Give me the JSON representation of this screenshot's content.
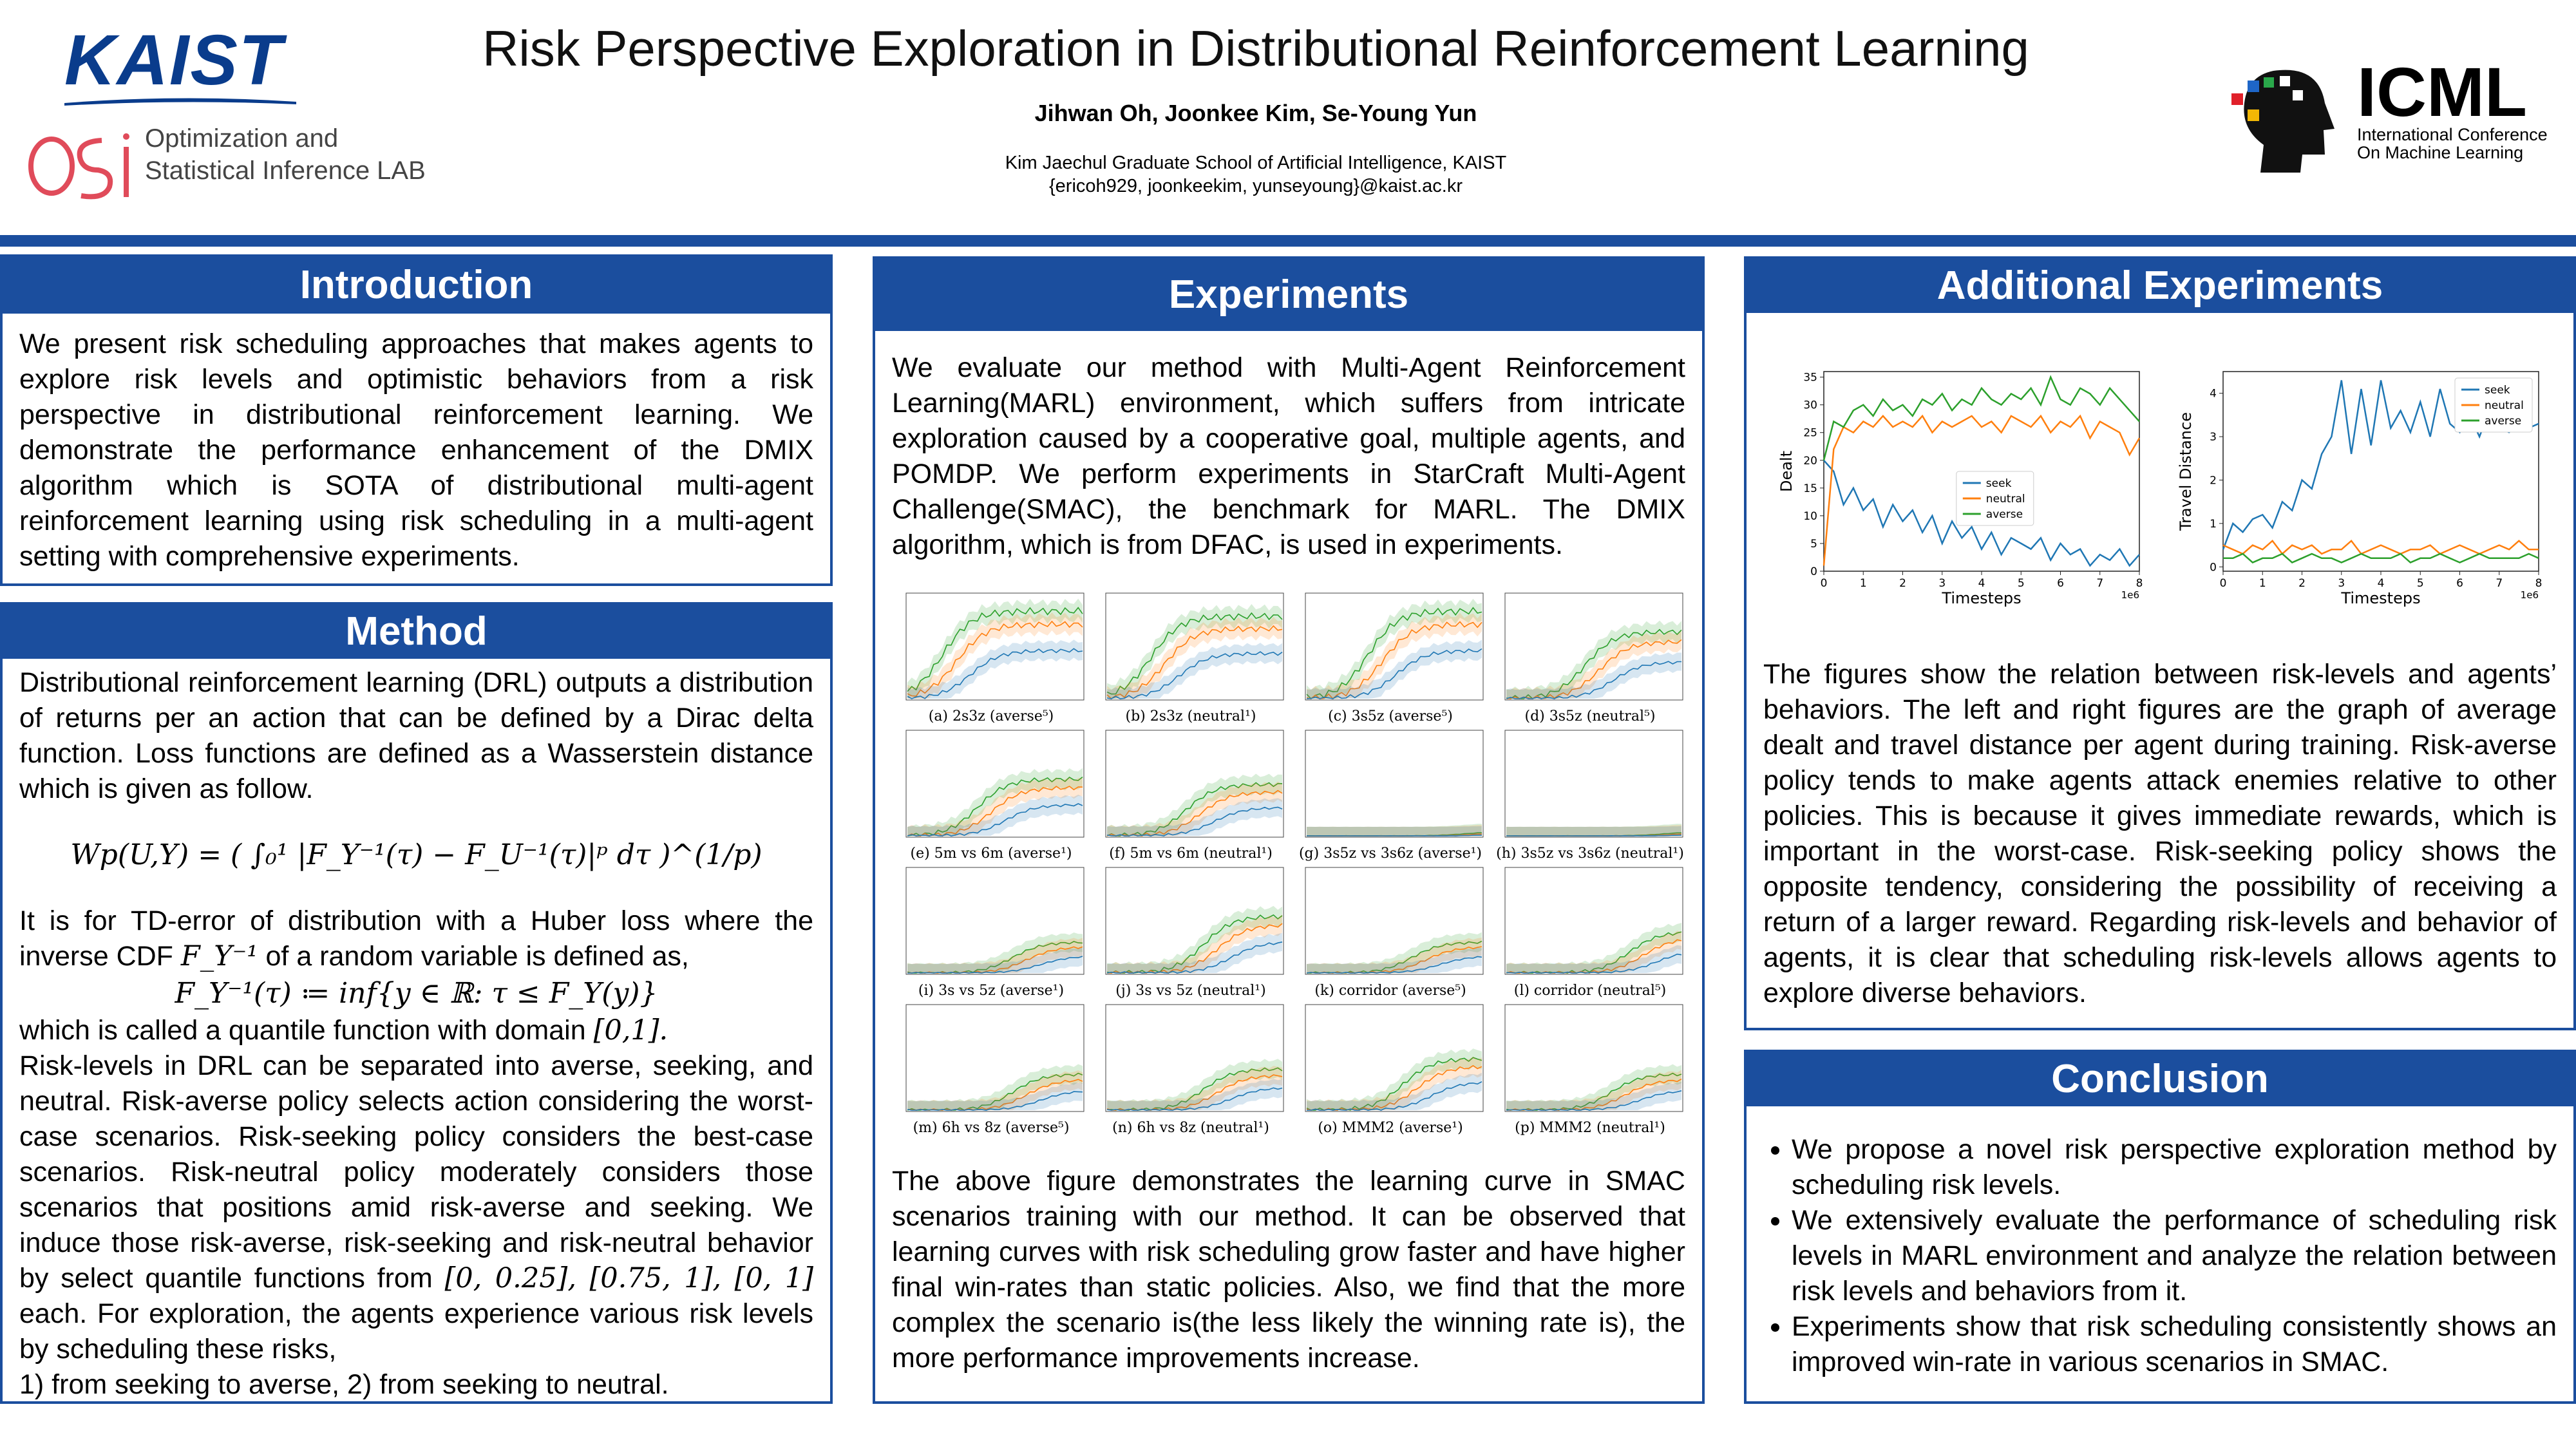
{
  "header": {
    "kaist_logo_text": "KAIST",
    "lab_line1": "Optimization and",
    "lab_line2": "Statistical Inference LAB",
    "title": "Risk Perspective Exploration in Distributional Reinforcement Learning",
    "authors": "Jihwan Oh, Joonkee Kim, Se-Young Yun",
    "affiliation": "Kim Jaechul Graduate School of Artificial Intelligence, KAIST",
    "emails": "{ericoh929, joonkeekim, yunseyoung}@kaist.ac.kr",
    "icml_word": "ICML",
    "icml_sub1": "International Conference",
    "icml_sub2": "On Machine Learning"
  },
  "introduction": {
    "heading": "Introduction",
    "text": "We present risk scheduling approaches that makes agents to explore risk levels and optimistic behaviors from a risk perspective in distributional reinforcement learning. We demonstrate the performance enhancement of the DMIX algorithm  which is SOTA of distributional multi-agent reinforcement learning using risk scheduling in a multi-agent setting with comprehensive experiments."
  },
  "method": {
    "heading": "Method",
    "p1": "Distributional reinforcement learning (DRL) outputs a distribution of returns per an action that can be defined by a Dirac delta function. Loss functions are defined as a Wasserstein distance which is given as follow.",
    "eq1": "Wp(U,Y) = ( ∫₀¹ |F_Y⁻¹(τ) − F_U⁻¹(τ)|ᵖ dτ )^(1/p)",
    "p2a": "It is for TD-error of distribution with a Huber loss where the inverse CDF",
    "p2sym": "F_Y⁻¹",
    "p2b": "of a random variable is defined as,",
    "eq2": "F_Y⁻¹(τ) ≔ inf{y ∈ ℝ: τ ≤ F_Y(y)}",
    "p3a": "which is called a quantile function with domain",
    "p3dom": "[0,1].",
    "p4": "Risk-levels in DRL  can be separated into averse, seeking, and neutral. Risk-averse policy selects action considering the worst-case scenarios. Risk-seeking policy considers the best-case scenarios. Risk-neutral policy moderately considers those scenarios that positions amid risk-averse and seeking. We induce those risk-averse, risk-seeking and risk-neutral behavior by select quantile functions from",
    "p4sets": "[0, 0.25], [0.75, 1], [0, 1]",
    "p4b": "each. For exploration, the agents experience various risk levels by scheduling these risks,",
    "p5": "1) from seeking to averse, 2) from seeking to neutral."
  },
  "experiments": {
    "heading": "Experiments",
    "text1": "We evaluate our method with Multi-Agent Reinforcement Learning(MARL) environment, which suffers from intricate exploration caused by a cooperative goal, multiple agents, and POMDP. We perform experiments in StarCraft Multi-Agent Challenge(SMAC), the benchmark for MARL. The DMIX algorithm, which is from DFAC, is used in experiments.",
    "captions": [
      "(a) 2s3z (averse⁵)",
      "(b) 2s3z (neutral¹)",
      "(c) 3s5z (averse⁵)",
      "(d) 3s5z (neutral⁵)",
      "(e) 5m vs 6m (averse¹)",
      "(f) 5m vs 6m (neutral¹)",
      "(g) 3s5z vs 3s6z (averse¹)",
      "(h) 3s5z vs 3s6z (neutral¹)",
      "(i) 3s vs 5z (averse¹)",
      "(j) 3s vs 5z (neutral¹)",
      "(k) corridor (averse⁵)",
      "(l) corridor (neutral⁵)",
      "(m) 6h vs 8z (averse⁵)",
      "(n) 6h vs 8z (neutral¹)",
      "(o) MMM2 (averse¹)",
      "(p) MMM2 (neutral¹)"
    ],
    "text2": "The above figure demonstrates the learning curve in SMAC scenarios training with our method. It can be observed that learning curves with risk scheduling grow faster and have higher final win-rates than static policies. Also, we find that the more complex the scenario is(the less likely the winning rate is), the more performance improvements increase."
  },
  "additional": {
    "heading": "Additional Experiments",
    "text": "The figures show the relation between risk-levels and agents’ behaviors. The left and right figures are the graph of average dealt and travel distance per agent during training. Risk-averse policy tends to make agents attack enemies relative to other policies. This is because it gives immediate rewards, which is important in the worst-case. Risk-seeking policy shows the opposite tendency, considering the possibility of receiving a return of a larger reward. Regarding risk-levels and behavior of agents, it is clear that scheduling risk-levels allows agents to explore diverse behaviors."
  },
  "conclusion": {
    "heading": "Conclusion",
    "items": [
      "We propose a novel risk perspective exploration method by scheduling risk levels.",
      "We extensively evaluate the performance of scheduling risk levels in MARL environment and analyze the relation between risk levels and behaviors from it.",
      "Experiments show that risk scheduling consistently shows an improved win-rate in various scenarios in SMAC."
    ]
  },
  "colors": {
    "primary": "#1b4e9e",
    "seek": "#1f77b4",
    "neutral": "#ff7f0e",
    "averse": "#2ca02c"
  },
  "chart_data": [
    {
      "type": "line",
      "xlabel": "Timesteps",
      "ylabel": "Dealt",
      "x_multiplier": "1e6",
      "xlim": [
        0,
        8
      ],
      "ylim": [
        0,
        36
      ],
      "xticks": [
        0,
        1,
        2,
        3,
        4,
        5,
        6,
        7,
        8
      ],
      "yticks": [
        0,
        5,
        10,
        15,
        20,
        25,
        30,
        35
      ],
      "legend": "center",
      "x": [
        0,
        0.25,
        0.5,
        0.75,
        1,
        1.25,
        1.5,
        1.75,
        2,
        2.25,
        2.5,
        2.75,
        3,
        3.25,
        3.5,
        3.75,
        4,
        4.25,
        4.5,
        4.75,
        5,
        5.25,
        5.5,
        5.75,
        6,
        6.25,
        6.5,
        6.75,
        7,
        7.25,
        7.5,
        7.75,
        8
      ],
      "series": [
        {
          "name": "seek",
          "values": [
            20,
            18,
            12,
            15,
            11,
            13,
            8,
            12,
            9,
            11,
            7,
            10,
            5,
            9,
            6,
            8,
            4,
            7,
            3,
            6,
            5,
            4,
            6,
            2,
            5,
            3,
            4,
            1,
            3,
            2,
            4,
            1,
            3
          ]
        },
        {
          "name": "neutral",
          "values": [
            1,
            22,
            26,
            25,
            27,
            26,
            28,
            26,
            27,
            26,
            28,
            25,
            27,
            26,
            27,
            28,
            26,
            27,
            25,
            28,
            27,
            26,
            28,
            25,
            27,
            26,
            28,
            24,
            27,
            26,
            25,
            21,
            24
          ]
        },
        {
          "name": "averse",
          "values": [
            20,
            27,
            26,
            29,
            30,
            28,
            31,
            29,
            30,
            28,
            31,
            30,
            32,
            29,
            31,
            30,
            33,
            31,
            30,
            32,
            31,
            33,
            30,
            35,
            31,
            30,
            33,
            32,
            30,
            33,
            31,
            29,
            27
          ]
        }
      ]
    },
    {
      "type": "line",
      "xlabel": "Timesteps",
      "ylabel": "Travel Distance",
      "x_multiplier": "1e6",
      "xlim": [
        0,
        8
      ],
      "ylim": [
        -0.1,
        4.5
      ],
      "xticks": [
        0,
        1,
        2,
        3,
        4,
        5,
        6,
        7,
        8
      ],
      "yticks": [
        0,
        1,
        2,
        3,
        4
      ],
      "legend": "top-right",
      "x": [
        0,
        0.25,
        0.5,
        0.75,
        1,
        1.25,
        1.5,
        1.75,
        2,
        2.25,
        2.5,
        2.75,
        3,
        3.25,
        3.5,
        3.75,
        4,
        4.25,
        4.5,
        4.75,
        5,
        5.25,
        5.5,
        5.75,
        6,
        6.25,
        6.5,
        6.75,
        7,
        7.25,
        7.5,
        7.75,
        8
      ],
      "series": [
        {
          "name": "seek",
          "values": [
            0.4,
            1.0,
            0.8,
            1.1,
            1.2,
            0.9,
            1.5,
            1.3,
            2.0,
            1.8,
            2.6,
            3.0,
            4.3,
            2.6,
            4.1,
            2.8,
            4.3,
            3.2,
            3.6,
            3.1,
            3.8,
            3.0,
            4.1,
            3.3,
            3.1,
            3.5,
            3.0,
            3.6,
            3.2,
            3.1,
            3.3,
            3.2,
            3.3
          ]
        },
        {
          "name": "neutral",
          "values": [
            0.5,
            0.4,
            0.3,
            0.5,
            0.4,
            0.6,
            0.3,
            0.5,
            0.4,
            0.5,
            0.3,
            0.4,
            0.4,
            0.6,
            0.3,
            0.4,
            0.5,
            0.4,
            0.3,
            0.4,
            0.4,
            0.5,
            0.3,
            0.4,
            0.5,
            0.4,
            0.3,
            0.4,
            0.5,
            0.4,
            0.6,
            0.4,
            0.4
          ]
        },
        {
          "name": "averse",
          "values": [
            0.2,
            0.2,
            0.3,
            0.1,
            0.2,
            0.2,
            0.3,
            0.1,
            0.2,
            0.3,
            0.2,
            0.2,
            0.1,
            0.2,
            0.3,
            0.2,
            0.2,
            0.2,
            0.3,
            0.1,
            0.2,
            0.2,
            0.3,
            0.2,
            0.1,
            0.2,
            0.3,
            0.2,
            0.2,
            0.2,
            0.2,
            0.3,
            0.2
          ]
        }
      ]
    }
  ]
}
